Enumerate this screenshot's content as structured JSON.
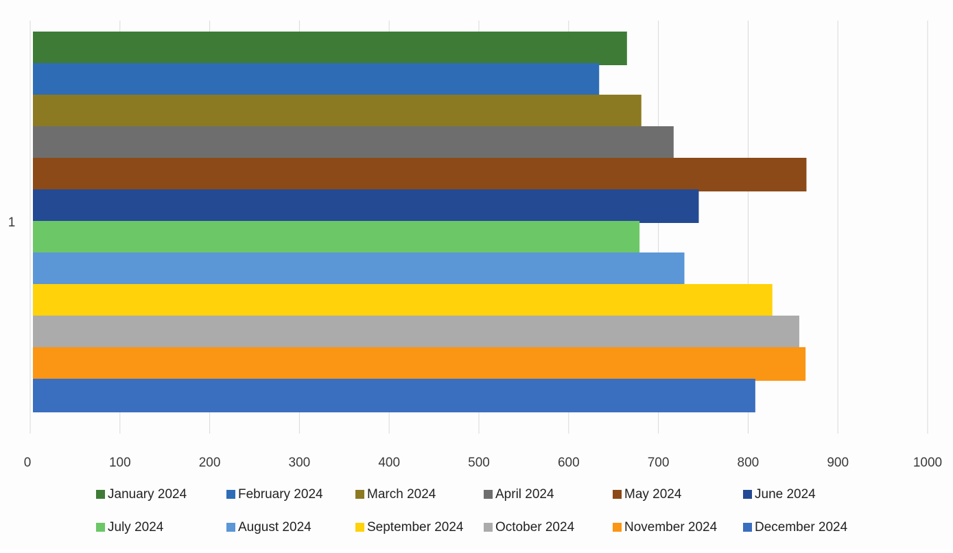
{
  "chart_data": {
    "type": "bar",
    "orientation": "horizontal",
    "categories": [
      "1"
    ],
    "series": [
      {
        "name": "January 2024",
        "values": [
          665
        ],
        "color": "#3E7B37"
      },
      {
        "name": "February 2024",
        "values": [
          634
        ],
        "color": "#2E6DB5"
      },
      {
        "name": "March 2024",
        "values": [
          681
        ],
        "color": "#8C7A22"
      },
      {
        "name": "April 2024",
        "values": [
          717
        ],
        "color": "#6E6E6E"
      },
      {
        "name": "May 2024",
        "values": [
          865
        ],
        "color": "#8B4A18"
      },
      {
        "name": "June 2024",
        "values": [
          745
        ],
        "color": "#244A93"
      },
      {
        "name": "July 2024",
        "values": [
          679
        ],
        "color": "#6CC766"
      },
      {
        "name": "August 2024",
        "values": [
          729
        ],
        "color": "#5B96D6"
      },
      {
        "name": "September 2024",
        "values": [
          827
        ],
        "color": "#FFD20A"
      },
      {
        "name": "October 2024",
        "values": [
          857
        ],
        "color": "#ABABAB"
      },
      {
        "name": "November 2024",
        "values": [
          864
        ],
        "color": "#FB9514"
      },
      {
        "name": "December 2024",
        "values": [
          808
        ],
        "color": "#3A6EBF"
      }
    ],
    "xlim": [
      0,
      1000
    ],
    "xticks": [
      0,
      100,
      200,
      300,
      400,
      500,
      600,
      700,
      800,
      900,
      1000
    ],
    "grid": "vertical",
    "legend_position": "bottom",
    "title": "",
    "xlabel": "",
    "ylabel": ""
  }
}
